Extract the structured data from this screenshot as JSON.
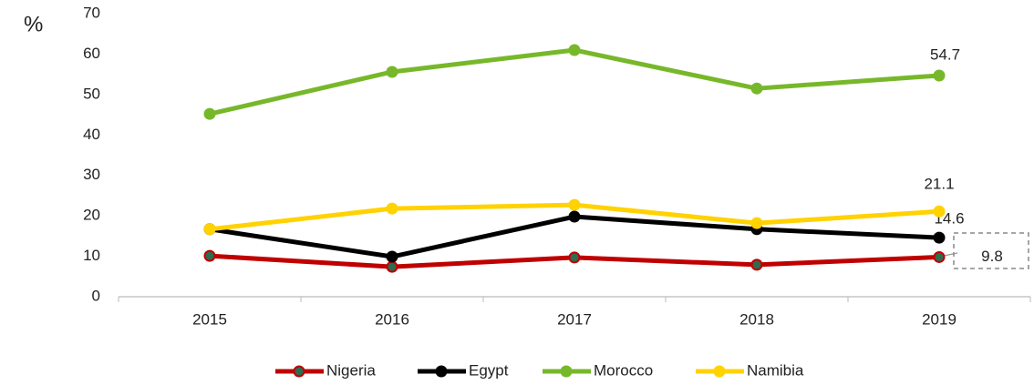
{
  "chart_data": {
    "type": "line",
    "y_label": "%",
    "categories": [
      "2015",
      "2016",
      "2017",
      "2018",
      "2019"
    ],
    "series": [
      {
        "name": "Nigeria",
        "color": "#c00000",
        "marker_color": "#2f6b4f",
        "values": [
          10.1,
          7.4,
          9.7,
          7.9,
          9.8
        ]
      },
      {
        "name": "Egypt",
        "color": "#000000",
        "values": [
          16.7,
          9.9,
          19.8,
          16.7,
          14.6
        ]
      },
      {
        "name": "Morocco",
        "color": "#77b82a",
        "values": [
          45.2,
          55.6,
          61.0,
          51.5,
          54.7
        ]
      },
      {
        "name": "Namibia",
        "color": "#ffd200",
        "values": [
          16.7,
          21.8,
          22.7,
          18.2,
          21.1
        ]
      }
    ],
    "ylim": [
      0,
      70
    ],
    "yticks": [
      0,
      10,
      20,
      30,
      40,
      50,
      60,
      70
    ],
    "legend": "bottom"
  }
}
